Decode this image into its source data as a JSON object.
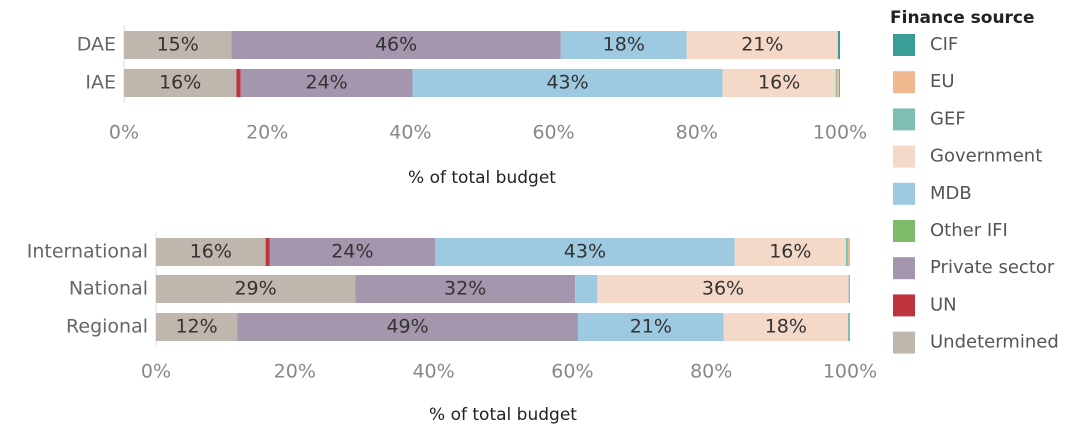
{
  "chart_data": [
    {
      "type": "stacked-bar-horizontal",
      "categories": [
        "DAE",
        "IAE"
      ],
      "x_label": "% of total budget",
      "legend_title": "Finance source",
      "xlim": [
        0,
        100
      ],
      "xticks": [
        {
          "value": 0,
          "label": "0%"
        },
        {
          "value": 20,
          "label": "20%"
        },
        {
          "value": 40,
          "label": "40%"
        },
        {
          "value": 60,
          "label": "60%"
        },
        {
          "value": 80,
          "label": "80%"
        },
        {
          "value": 100,
          "label": "100%"
        }
      ],
      "series": [
        {
          "name": "CIF",
          "color": "#3a9e96",
          "values": [
            0.3,
            0.1
          ],
          "value_labels": [
            null,
            null
          ]
        },
        {
          "name": "EU",
          "color": "#f0b88f",
          "values": [
            0,
            0.3
          ],
          "value_labels": [
            null,
            null
          ]
        },
        {
          "name": "GEF",
          "color": "#7fbfb2",
          "values": [
            0,
            0.2
          ],
          "value_labels": [
            null,
            null
          ]
        },
        {
          "name": "Government",
          "color": "#f4d9c9",
          "values": [
            21.1,
            15.8
          ],
          "value_labels": [
            "21%",
            "16%"
          ]
        },
        {
          "name": "MDB",
          "color": "#9ecae1",
          "values": [
            17.6,
            43.3
          ],
          "value_labels": [
            "18%",
            "43%"
          ]
        },
        {
          "name": "Other IFI",
          "color": "#7dba6a",
          "values": [
            0,
            0
          ],
          "value_labels": [
            null,
            null
          ]
        },
        {
          "name": "Private sector",
          "color": "#a496ad",
          "values": [
            46,
            24
          ],
          "value_labels": [
            "46%",
            "24%"
          ]
        },
        {
          "name": "UN",
          "color": "#c0343f",
          "values": [
            0,
            0.6
          ],
          "value_labels": [
            null,
            null
          ]
        },
        {
          "name": "Undetermined",
          "color": "#bfb6ad",
          "values": [
            15,
            15.7
          ],
          "value_labels": [
            "15%",
            "16%"
          ]
        }
      ]
    },
    {
      "type": "stacked-bar-horizontal",
      "categories": [
        "International",
        "National",
        "Regional"
      ],
      "x_label": "% of total budget",
      "xlim": [
        0,
        100
      ],
      "xticks": [
        {
          "value": 0,
          "label": "0%"
        },
        {
          "value": 20,
          "label": "20%"
        },
        {
          "value": 40,
          "label": "40%"
        },
        {
          "value": 60,
          "label": "60%"
        },
        {
          "value": 80,
          "label": "80%"
        },
        {
          "value": 100,
          "label": "100%"
        }
      ],
      "series": [
        {
          "name": "CIF",
          "color": "#3a9e96",
          "values": [
            0,
            0,
            0
          ],
          "value_labels": [
            null,
            null,
            null
          ]
        },
        {
          "name": "EU",
          "color": "#f0b88f",
          "values": [
            0.3,
            0,
            0
          ],
          "value_labels": [
            null,
            null,
            null
          ]
        },
        {
          "name": "GEF",
          "color": "#7fbfb2",
          "values": [
            0.3,
            0.2,
            0.3
          ],
          "value_labels": [
            null,
            null,
            null
          ]
        },
        {
          "name": "Government",
          "color": "#f4d9c9",
          "values": [
            16,
            36.2,
            17.9
          ],
          "value_labels": [
            "16%",
            "36%",
            "18%"
          ]
        },
        {
          "name": "MDB",
          "color": "#9ecae1",
          "values": [
            43.2,
            3.2,
            21
          ],
          "value_labels": [
            "43%",
            null,
            "21%"
          ]
        },
        {
          "name": "Other IFI",
          "color": "#7dba6a",
          "values": [
            0,
            0,
            0
          ],
          "value_labels": [
            null,
            null,
            null
          ]
        },
        {
          "name": "Private sector",
          "color": "#a496ad",
          "values": [
            23.8,
            31.7,
            49.1
          ],
          "value_labels": [
            "24%",
            "32%",
            "49%"
          ]
        },
        {
          "name": "UN",
          "color": "#c0343f",
          "values": [
            0.6,
            0,
            0
          ],
          "value_labels": [
            null,
            null,
            null
          ]
        },
        {
          "name": "Undetermined",
          "color": "#bfb6ad",
          "values": [
            15.8,
            28.7,
            11.7
          ],
          "value_labels": [
            "16%",
            "29%",
            "12%"
          ]
        }
      ]
    }
  ]
}
